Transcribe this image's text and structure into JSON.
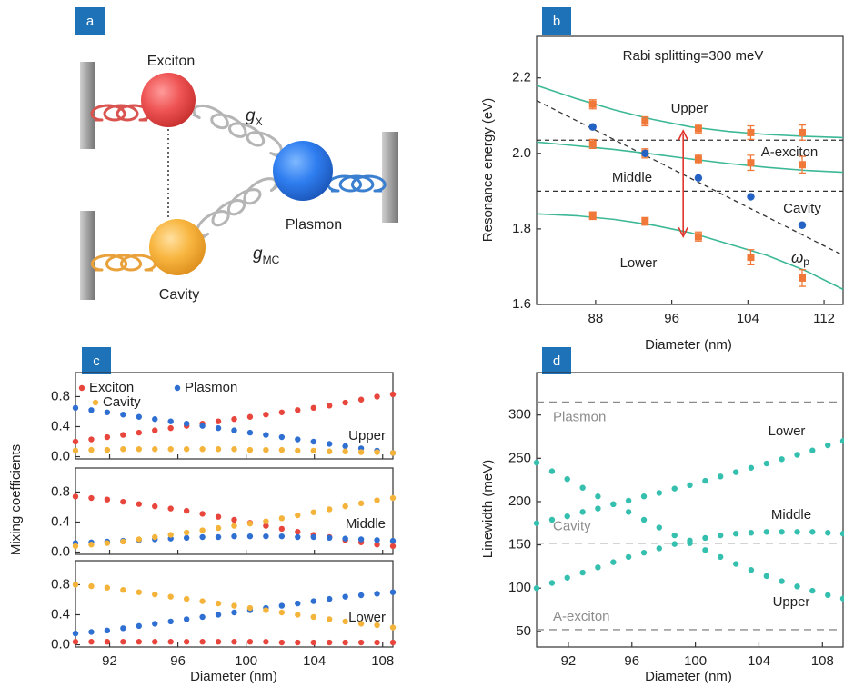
{
  "diagram": {
    "label": "a",
    "nodes": [
      {
        "label": "Exciton"
      },
      {
        "label": "Plasmon"
      },
      {
        "label": "Cavity"
      }
    ],
    "couplings": [
      {
        "symbol": "g",
        "subscript": "X"
      },
      {
        "symbol": "g",
        "subscript": "MC"
      }
    ]
  },
  "chart_data": [
    {
      "type": "scatter",
      "panel_label": "b",
      "annotation": "Rabi splitting=300 meV",
      "xlabel": "Diameter (nm)",
      "ylabel": "Resonance energy (eV)",
      "xlim": [
        81.8,
        114
      ],
      "xticks": [
        88,
        96,
        104,
        112
      ],
      "ylim": [
        1.6,
        2.31
      ],
      "yticks": [
        1.6,
        1.8,
        {
          "value": 2,
          "label": "2.0"
        },
        2.2
      ],
      "x": [
        87.7,
        93.2,
        98.8,
        104.3,
        109.7
      ],
      "series": [
        {
          "name": "Upper",
          "color": "#f0793a",
          "values": [
            2.13,
            2.085,
            2.065,
            2.055,
            2.055
          ],
          "errors": [
            0.012,
            0.012,
            0.012,
            0.018,
            0.02
          ]
        },
        {
          "name": "Middle",
          "color": "#f0793a",
          "values": [
            2.025,
            2.0,
            1.985,
            1.975,
            1.97
          ],
          "errors": [
            0.012,
            0.012,
            0.012,
            0.02,
            0.022
          ]
        },
        {
          "name": "Lower",
          "color": "#f0793a",
          "values": [
            1.835,
            1.82,
            1.78,
            1.725,
            1.67
          ],
          "errors": [
            0.01,
            0.01,
            0.012,
            0.02,
            0.022
          ]
        },
        {
          "name": "Cavity",
          "color": "#2463c4",
          "values": [
            2.07,
            2.0,
            1.935,
            1.885,
            1.81
          ]
        }
      ],
      "fits": {
        "color": "#3cb896",
        "x": [
          81.8,
          86,
          90,
          94,
          98,
          102,
          106,
          110,
          114
        ],
        "series": [
          [
            2.18,
            2.145,
            2.115,
            2.09,
            2.07,
            2.058,
            2.05,
            2.045,
            2.042
          ],
          [
            2.03,
            2.02,
            2.01,
            1.998,
            1.985,
            1.973,
            1.963,
            1.955,
            1.95
          ],
          [
            1.84,
            1.835,
            1.825,
            1.81,
            1.79,
            1.76,
            1.73,
            1.69,
            1.64
          ]
        ]
      },
      "reference_lines": [
        {
          "name": "A-exciton",
          "value": 2.035
        },
        {
          "value": 1.9
        }
      ],
      "plasmon_line": {
        "name": "ω",
        "subscript": "p",
        "x": [
          81.8,
          114
        ],
        "values": [
          2.14,
          1.73
        ]
      },
      "arrow": {
        "color": "#e0342b",
        "x": 97.2,
        "values": [
          1.78,
          2.06
        ]
      }
    },
    {
      "type": "scatter",
      "panel_label": "c",
      "ylabel": "Mixing coefficients",
      "xlabel": "Diameter (nm)",
      "xlim": [
        90,
        108.6
      ],
      "xticks": [
        92,
        96,
        100,
        104,
        108
      ],
      "ylim": [
        -0.03,
        1.12
      ],
      "yticks": [
        {
          "value": 0,
          "label": "0.0"
        },
        0.4,
        0.8
      ],
      "x": [
        90,
        90.93,
        91.86,
        92.79,
        93.72,
        94.65,
        95.58,
        96.51,
        97.44,
        98.37,
        99.3,
        100.23,
        101.16,
        102.09,
        103.02,
        103.95,
        104.88,
        105.81,
        106.74,
        107.67,
        108.6
      ],
      "series": [
        {
          "name": "Exciton",
          "color": "#e8453c"
        },
        {
          "name": "Plasmon",
          "color": "#2f6fd2"
        },
        {
          "name": "Cavity",
          "color": "#f4b43c"
        }
      ],
      "panels": [
        {
          "label": "Upper",
          "values": [
            [
              0.2,
              0.23,
              0.26,
              0.29,
              0.32,
              0.35,
              0.38,
              0.41,
              0.44,
              0.47,
              0.5,
              0.53,
              0.56,
              0.59,
              0.62,
              0.65,
              0.68,
              0.72,
              0.76,
              0.8,
              0.83
            ],
            [
              0.65,
              0.62,
              0.59,
              0.56,
              0.53,
              0.5,
              0.47,
              0.44,
              0.41,
              0.38,
              0.35,
              0.32,
              0.29,
              0.26,
              0.23,
              0.2,
              0.17,
              0.14,
              0.11,
              0.08,
              0.05
            ],
            [
              0.08,
              0.09,
              0.09,
              0.1,
              0.1,
              0.1,
              0.1,
              0.1,
              0.1,
              0.1,
              0.1,
              0.09,
              0.09,
              0.09,
              0.08,
              0.08,
              0.07,
              0.07,
              0.06,
              0.06,
              0.05
            ]
          ]
        },
        {
          "label": "Middle",
          "values": [
            [
              0.74,
              0.72,
              0.7,
              0.67,
              0.64,
              0.61,
              0.58,
              0.55,
              0.51,
              0.47,
              0.43,
              0.39,
              0.35,
              0.31,
              0.27,
              0.23,
              0.2,
              0.16,
              0.13,
              0.1,
              0.08
            ],
            [
              0.12,
              0.13,
              0.14,
              0.15,
              0.16,
              0.17,
              0.18,
              0.19,
              0.2,
              0.2,
              0.21,
              0.21,
              0.21,
              0.21,
              0.2,
              0.2,
              0.19,
              0.18,
              0.17,
              0.16,
              0.15
            ],
            [
              0.08,
              0.1,
              0.12,
              0.14,
              0.17,
              0.2,
              0.23,
              0.26,
              0.29,
              0.32,
              0.35,
              0.38,
              0.41,
              0.45,
              0.49,
              0.53,
              0.57,
              0.61,
              0.65,
              0.69,
              0.72
            ]
          ]
        },
        {
          "label": "Lower",
          "values": [
            [
              0.04,
              0.04,
              0.04,
              0.04,
              0.04,
              0.04,
              0.04,
              0.04,
              0.04,
              0.04,
              0.04,
              0.04,
              0.04,
              0.03,
              0.03,
              0.03,
              0.03,
              0.03,
              0.03,
              0.03,
              0.03
            ],
            [
              0.15,
              0.17,
              0.19,
              0.22,
              0.25,
              0.28,
              0.31,
              0.34,
              0.37,
              0.4,
              0.43,
              0.46,
              0.49,
              0.52,
              0.55,
              0.58,
              0.61,
              0.64,
              0.66,
              0.68,
              0.7
            ],
            [
              0.8,
              0.78,
              0.76,
              0.73,
              0.7,
              0.67,
              0.64,
              0.61,
              0.58,
              0.55,
              0.52,
              0.49,
              0.46,
              0.43,
              0.4,
              0.37,
              0.34,
              0.31,
              0.28,
              0.26,
              0.23
            ]
          ]
        }
      ]
    },
    {
      "type": "scatter",
      "panel_label": "d",
      "ylabel": "Linewidth (meV)",
      "xlabel": "Diameter (nm)",
      "xlim": [
        90,
        109.3
      ],
      "xticks": [
        92,
        96,
        100,
        104,
        108
      ],
      "ylim": [
        32,
        349
      ],
      "yticks": [
        50,
        100,
        150,
        200,
        250,
        300
      ],
      "x": [
        90,
        90.97,
        91.93,
        92.9,
        93.86,
        94.83,
        95.79,
        96.76,
        97.72,
        98.69,
        99.65,
        100.62,
        101.58,
        102.55,
        103.51,
        104.48,
        105.44,
        106.41,
        107.37,
        108.34,
        109.3
      ],
      "series": [
        {
          "name": "Lower",
          "color": "#35bfae",
          "values": [
            175,
            179,
            183,
            188,
            192,
            197,
            201,
            206,
            210,
            215,
            219,
            224,
            229,
            234,
            239,
            244,
            249,
            254,
            259,
            265,
            270
          ]
        },
        {
          "name": "Middle",
          "color": "#35bfae",
          "values": [
            100,
            106,
            112,
            118,
            124,
            130,
            136,
            141,
            146,
            151,
            155,
            158,
            161,
            163,
            164,
            165,
            165,
            165,
            165,
            164,
            163
          ]
        },
        {
          "name": "Upper",
          "color": "#35bfae",
          "values": [
            245,
            235,
            226,
            216,
            206,
            197,
            188,
            179,
            170,
            161,
            152,
            144,
            136,
            128,
            121,
            114,
            108,
            102,
            97,
            92,
            88
          ]
        }
      ],
      "reference_lines": [
        {
          "name": "Plasmon",
          "value": 315
        },
        {
          "name": "Cavity",
          "value": 152
        },
        {
          "name": "A-exciton",
          "value": 52
        }
      ],
      "reference_color": "#8c8c8c"
    }
  ]
}
